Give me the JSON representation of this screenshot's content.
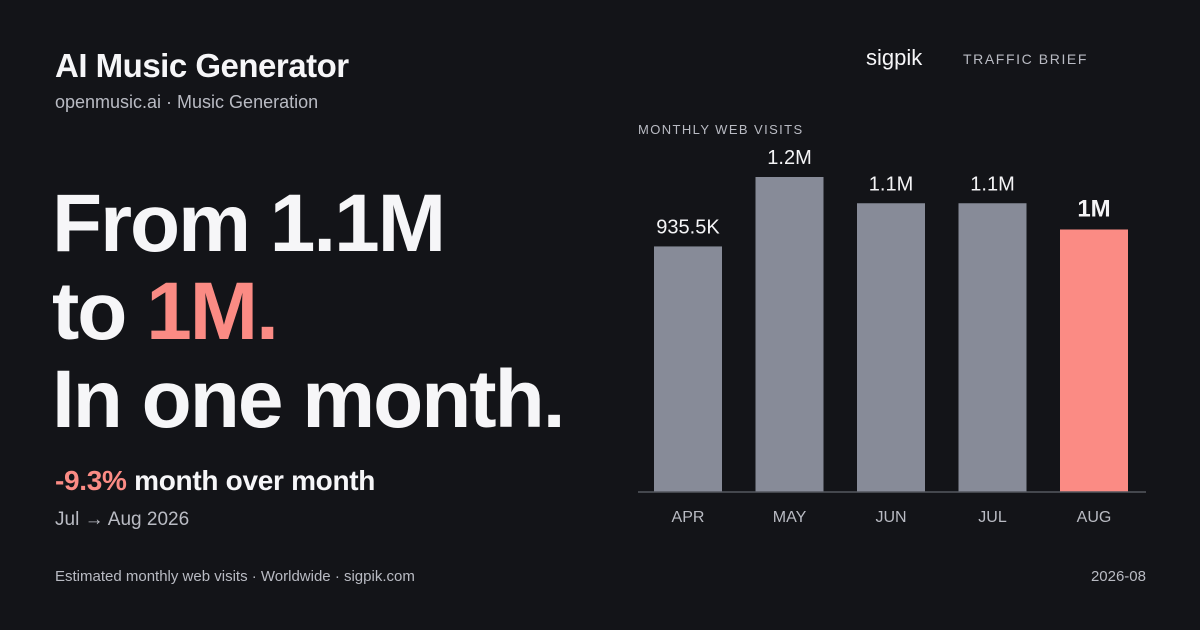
{
  "header": {
    "title": "AI Music Generator",
    "subtitle": "openmusic.ai · Music Generation"
  },
  "headline": {
    "line1": "From 1.1M",
    "line2_prefix": "to ",
    "line2_accent": "1M.",
    "line3": "In one month."
  },
  "change": {
    "percent": "-9.3%",
    "description": "month over month",
    "period": "Jul → Aug 2026"
  },
  "brand": {
    "name": "sigpik",
    "tag": "TRAFFIC BRIEF"
  },
  "footer": {
    "left": "Estimated monthly web visits · Worldwide · sigpik.com",
    "right": "2026-08"
  },
  "colors": {
    "background": "#131418",
    "bar": "#878b98",
    "highlight": "#fb8b84",
    "baseline": "#55585f"
  },
  "chart_data": {
    "type": "bar",
    "title": "MONTHLY WEB VISITS",
    "categories": [
      "APR",
      "MAY",
      "JUN",
      "JUL",
      "AUG"
    ],
    "values": [
      935500,
      1200000,
      1100000,
      1100000,
      1000000
    ],
    "data_labels": [
      "935.5K",
      "1.2M",
      "1.1M",
      "1.1M",
      "1M"
    ],
    "highlight_index": 4,
    "ylim": [
      0,
      1200000
    ],
    "grid": false,
    "legend": "none"
  }
}
